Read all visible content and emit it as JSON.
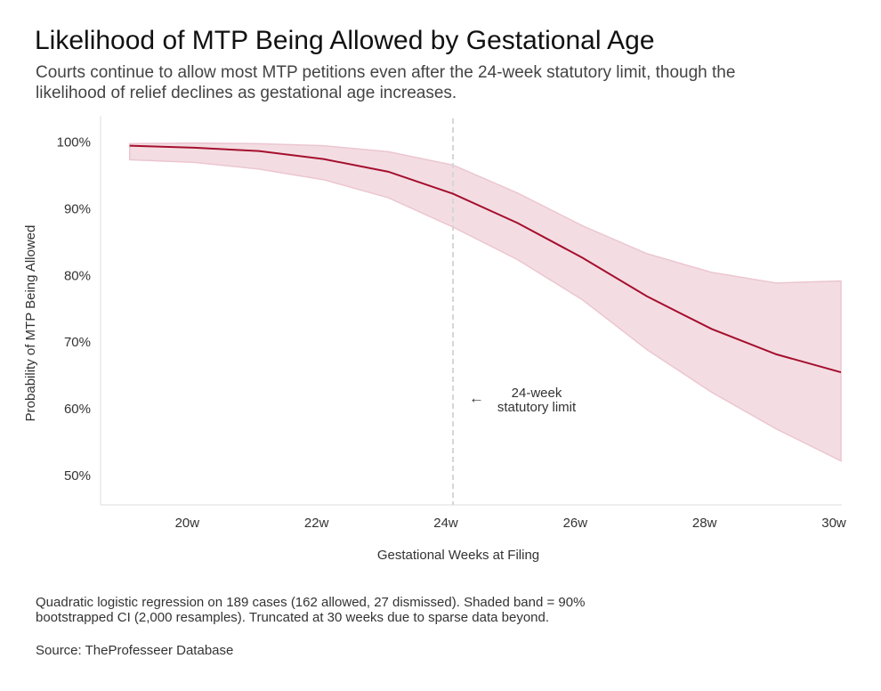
{
  "chart_data": {
    "type": "line",
    "title": "Likelihood of MTP Being Allowed by Gestational Age",
    "subtitle": [
      "Courts continue to allow most MTP petitions even after the 24-week statutory limit, though the",
      "likelihood of relief declines as gestational age increases."
    ],
    "x_label": "Gestational Weeks at Filing",
    "y_label": "Probability of MTP Being Allowed",
    "x": [
      19,
      20,
      21,
      22,
      23,
      24,
      25,
      26,
      27,
      28,
      29,
      30
    ],
    "line": {
      "color": "#a50f2d",
      "values": [
        99.6,
        99.3,
        98.8,
        97.6,
        95.7,
        92.4,
        88.0,
        82.8,
        77.0,
        72.1,
        68.3,
        65.6
      ]
    },
    "band": {
      "color": "#f3dde3",
      "edge_color": "#ecc6d0",
      "lower": [
        97.5,
        97.1,
        96.1,
        94.5,
        91.8,
        87.4,
        82.5,
        76.5,
        69.0,
        62.6,
        57.1,
        52.3
      ],
      "upper": [
        99.9,
        100,
        99.9,
        99.6,
        98.7,
        96.7,
        92.5,
        87.6,
        83.4,
        80.6,
        79.0,
        79.3
      ]
    },
    "xlim": [
      18.55,
      30
    ],
    "ylim": [
      45.7,
      104.1
    ],
    "xticks": [
      {
        "value": 20,
        "label": "20w"
      },
      {
        "value": 22,
        "label": "22w"
      },
      {
        "value": 24,
        "label": "24w"
      },
      {
        "value": 26,
        "label": "26w"
      },
      {
        "value": 28,
        "label": "28w"
      },
      {
        "value": 30,
        "label": "30w"
      }
    ],
    "yticks": [
      {
        "value": 50,
        "label": "50%"
      },
      {
        "value": 60,
        "label": "60%"
      },
      {
        "value": 70,
        "label": "70%"
      },
      {
        "value": 80,
        "label": "80%"
      },
      {
        "value": 90,
        "label": "90%"
      },
      {
        "value": 100,
        "label": "100%"
      }
    ],
    "reference_line": {
      "x": 24,
      "arrow": "←",
      "label": [
        "24-week",
        "statutory limit"
      ]
    },
    "footnote": [
      "Quadratic logistic regression on 189 cases (162 allowed, 27 dismissed). Shaded band = 90%",
      "bootstrapped CI (2,000 resamples). Truncated at 30 weeks due to sparse data beyond."
    ],
    "source": "Source: TheProfesseer Database"
  }
}
